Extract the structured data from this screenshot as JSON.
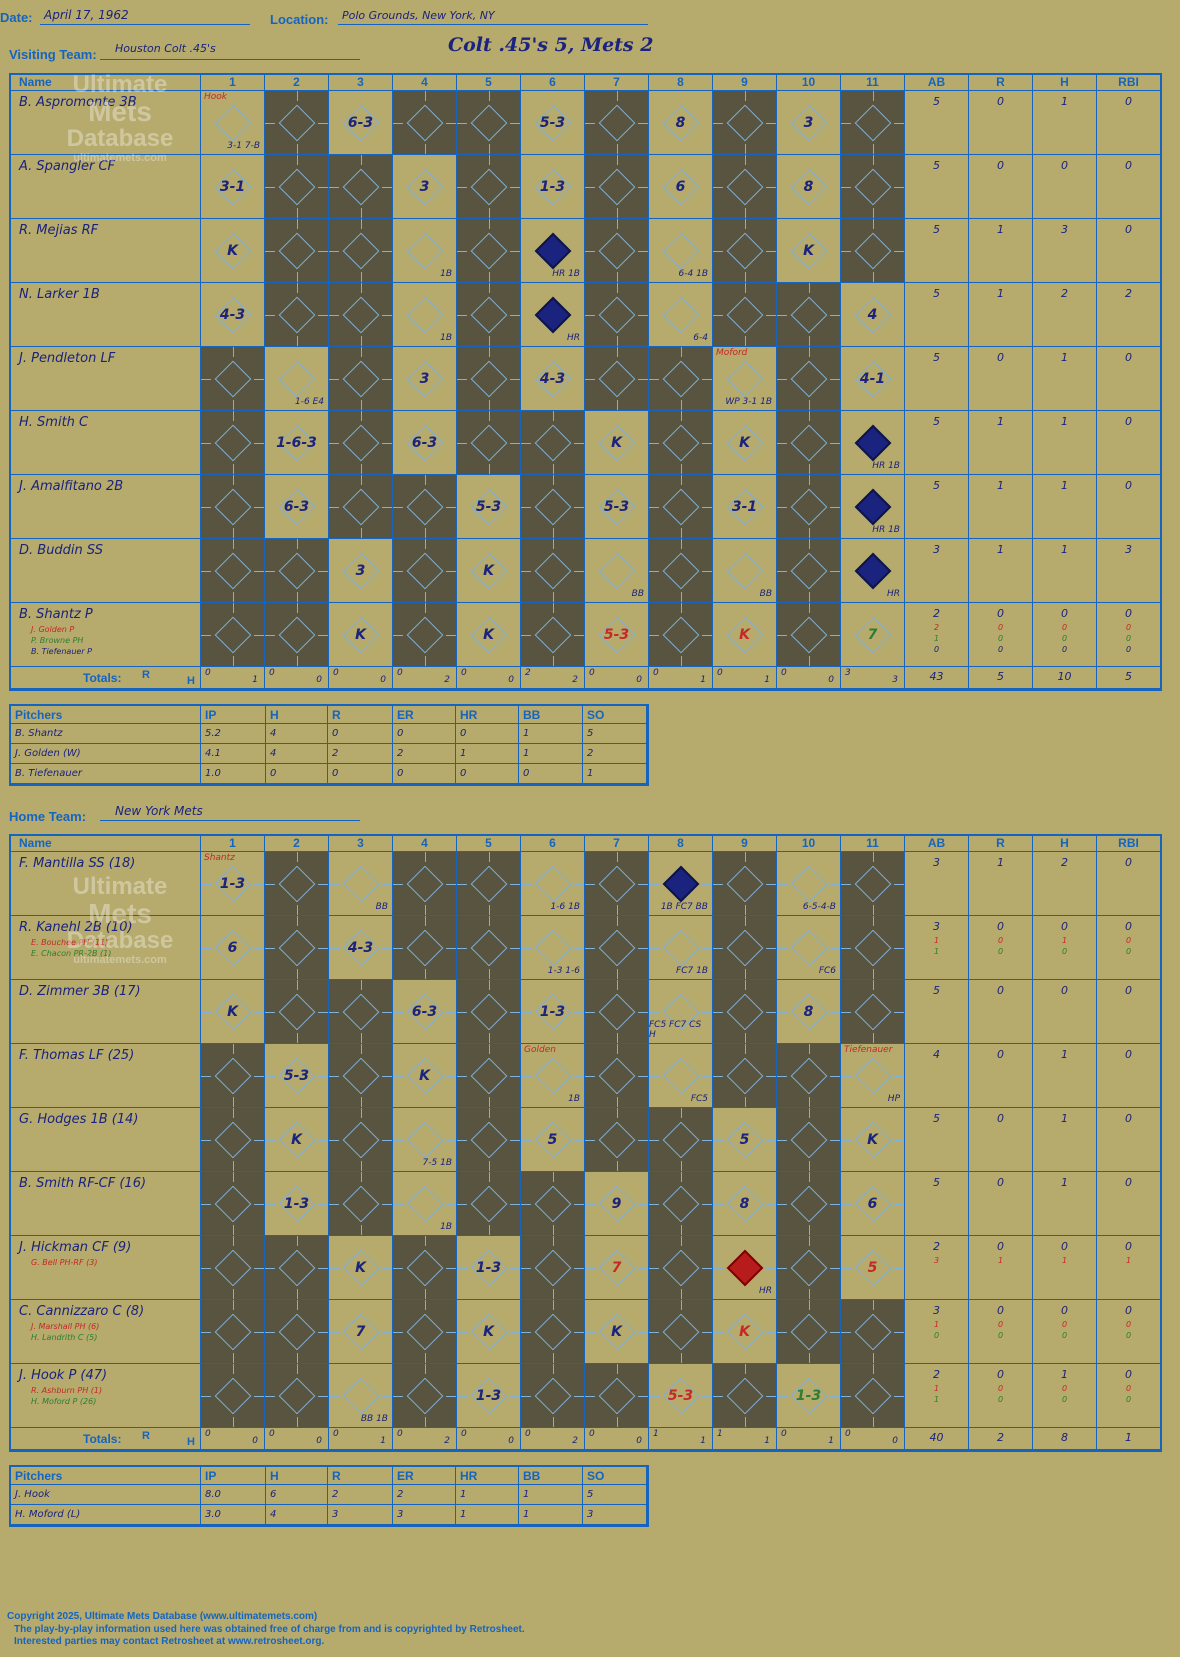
{
  "header": {
    "date_label": "Date:",
    "date": "April 17, 1962",
    "location_label": "Location:",
    "location": "Polo Grounds, New York, NY",
    "visiting_label": "Visiting Team:",
    "visiting_team": "Houston Colt .45's",
    "game_result": "Colt .45's 5, Mets 2",
    "home_label": "Home Team:",
    "home_team": "New York Mets"
  },
  "grid_headers": {
    "name": "Name",
    "innings": [
      "1",
      "2",
      "3",
      "4",
      "5",
      "6",
      "7",
      "8",
      "9",
      "10",
      "11"
    ],
    "stats": [
      "AB",
      "R",
      "H",
      "RBI"
    ],
    "totals": "Totals:",
    "r": "R",
    "h": "H"
  },
  "watermark": {
    "line1": "Ultimate",
    "line2": "Mets",
    "line3": "Database",
    "url": "ultimatemets.com"
  },
  "visitors": {
    "rows": [
      {
        "name": "B. Aspromonte 3B",
        "subs": [],
        "ab": "5",
        "r": "0",
        "h": "1",
        "rbi": "0",
        "cells": [
          {
            "p": "",
            "n": "Hook",
            "n2": "3-1 7-B",
            "run": false
          },
          {
            "dark": true
          },
          {
            "p": "6-3"
          },
          {
            "dark": true
          },
          {
            "dark": true
          },
          {
            "p": "5-3"
          },
          {
            "dark": true
          },
          {
            "p": "8"
          },
          {
            "dark": true
          },
          {
            "p": "3"
          },
          {
            "dark": true
          }
        ]
      },
      {
        "name": "A. Spangler CF",
        "subs": [],
        "ab": "5",
        "r": "0",
        "h": "0",
        "rbi": "0",
        "cells": [
          {
            "p": "3-1"
          },
          {
            "dark": true
          },
          {
            "dark": true
          },
          {
            "p": "3"
          },
          {
            "dark": true
          },
          {
            "p": "1-3"
          },
          {
            "dark": true
          },
          {
            "p": "6"
          },
          {
            "dark": true
          },
          {
            "p": "8"
          },
          {
            "dark": true
          }
        ]
      },
      {
        "name": "R. Mejias RF",
        "subs": [],
        "ab": "5",
        "r": "1",
        "h": "3",
        "rbi": "0",
        "cells": [
          {
            "p": "K"
          },
          {
            "dark": true
          },
          {
            "dark": true
          },
          {
            "p": "",
            "n2": "1B"
          },
          {
            "dark": true
          },
          {
            "run": true,
            "n2": "HR 1B"
          },
          {
            "dark": true
          },
          {
            "p": "",
            "n2": "6-4 1B"
          },
          {
            "dark": true
          },
          {
            "p": "K"
          },
          {
            "dark": true
          }
        ]
      },
      {
        "name": "N. Larker 1B",
        "subs": [],
        "ab": "5",
        "r": "1",
        "h": "2",
        "rbi": "2",
        "cells": [
          {
            "p": "4-3"
          },
          {
            "dark": true
          },
          {
            "dark": true
          },
          {
            "p": "",
            "n2": "1B"
          },
          {
            "dark": true
          },
          {
            "run": true,
            "n2": "HR"
          },
          {
            "dark": true
          },
          {
            "p": "",
            "n2": "6-4"
          },
          {
            "dark": true
          },
          {
            "dark": true
          },
          {
            "p": "4"
          }
        ]
      },
      {
        "name": "J. Pendleton LF",
        "subs": [],
        "ab": "5",
        "r": "0",
        "h": "1",
        "rbi": "0",
        "cells": [
          {
            "dark": true
          },
          {
            "p": "",
            "n2": "1-6 E4"
          },
          {
            "dark": true
          },
          {
            "p": "3"
          },
          {
            "dark": true
          },
          {
            "p": "4-3"
          },
          {
            "dark": true
          },
          {
            "dark": true
          },
          {
            "p": "",
            "n": "Moford",
            "n2": "WP 3-1 1B"
          },
          {
            "dark": true
          },
          {
            "p": "4-1"
          }
        ]
      },
      {
        "name": "H. Smith C",
        "subs": [],
        "ab": "5",
        "r": "1",
        "h": "1",
        "rbi": "0",
        "cells": [
          {
            "dark": true
          },
          {
            "p": "1-6-3"
          },
          {
            "dark": true
          },
          {
            "p": "6-3"
          },
          {
            "dark": true
          },
          {
            "dark": true
          },
          {
            "p": "K"
          },
          {
            "dark": true
          },
          {
            "p": "K"
          },
          {
            "dark": true
          },
          {
            "run": true,
            "n2": "HR 1B"
          }
        ]
      },
      {
        "name": "J. Amalfitano 2B",
        "subs": [],
        "ab": "5",
        "r": "1",
        "h": "1",
        "rbi": "0",
        "cells": [
          {
            "dark": true
          },
          {
            "p": "6-3"
          },
          {
            "dark": true
          },
          {
            "dark": true
          },
          {
            "p": "5-3"
          },
          {
            "dark": true
          },
          {
            "p": "5-3"
          },
          {
            "dark": true
          },
          {
            "p": "3-1"
          },
          {
            "dark": true
          },
          {
            "run": true,
            "n2": "HR 1B"
          }
        ]
      },
      {
        "name": "D. Buddin SS",
        "subs": [],
        "ab": "3",
        "r": "1",
        "h": "1",
        "rbi": "3",
        "cells": [
          {
            "dark": true
          },
          {
            "dark": true
          },
          {
            "p": "3"
          },
          {
            "dark": true
          },
          {
            "p": "K"
          },
          {
            "dark": true
          },
          {
            "p": "",
            "n2": "BB"
          },
          {
            "dark": true
          },
          {
            "p": "",
            "n2": "BB"
          },
          {
            "dark": true
          },
          {
            "run": true,
            "n2": "HR"
          }
        ]
      },
      {
        "name": "B. Shantz P",
        "subs": [
          {
            "t": "J. Golden P",
            "c": "#c62828"
          },
          {
            "t": "P. Browne PH",
            "c": "#2e7d32"
          },
          {
            "t": "B. Tiefenauer P",
            "c": "#1a237e"
          }
        ],
        "ab": "2",
        "r": "0",
        "h": "0",
        "rbi": "0",
        "subab": [
          "2",
          "1",
          "0"
        ],
        "subr": [
          "0",
          "0",
          "0"
        ],
        "subh": [
          "0",
          "0",
          "0"
        ],
        "subrbi": [
          "0",
          "0",
          "0"
        ],
        "cells": [
          {
            "dark": true
          },
          {
            "dark": true
          },
          {
            "p": "K"
          },
          {
            "dark": true
          },
          {
            "p": "K"
          },
          {
            "dark": true
          },
          {
            "p": "5-3",
            "c": "red"
          },
          {
            "dark": true
          },
          {
            "p": "K",
            "c": "red"
          },
          {
            "dark": true
          },
          {
            "p": "7",
            "c": "green"
          }
        ]
      }
    ],
    "totals": [
      [
        "0",
        "1"
      ],
      [
        "0",
        "0"
      ],
      [
        "0",
        "0"
      ],
      [
        "0",
        "2"
      ],
      [
        "0",
        "0"
      ],
      [
        "2",
        "2"
      ],
      [
        "0",
        "0"
      ],
      [
        "0",
        "1"
      ],
      [
        "0",
        "1"
      ],
      [
        "0",
        "0"
      ],
      [
        "3",
        "3"
      ]
    ],
    "totals_stats": [
      "43",
      "5",
      "10",
      "5"
    ]
  },
  "visitor_pitchers": {
    "headers": [
      "Pitchers",
      "IP",
      "H",
      "R",
      "ER",
      "HR",
      "BB",
      "SO"
    ],
    "rows": [
      [
        "B. Shantz",
        "5.2",
        "4",
        "0",
        "0",
        "0",
        "1",
        "5"
      ],
      [
        "J. Golden (W)",
        "4.1",
        "4",
        "2",
        "2",
        "1",
        "1",
        "2"
      ],
      [
        "B. Tiefenauer",
        "1.0",
        "0",
        "0",
        "0",
        "0",
        "0",
        "1"
      ]
    ]
  },
  "home": {
    "rows": [
      {
        "name": "F. Mantilla SS (18)",
        "subs": [],
        "ab": "3",
        "r": "1",
        "h": "2",
        "rbi": "0",
        "cells": [
          {
            "p": "1-3",
            "n": "Shantz"
          },
          {
            "dark": true
          },
          {
            "p": "",
            "n2": "BB"
          },
          {
            "dark": true
          },
          {
            "dark": true
          },
          {
            "p": "",
            "n2": "1-6 1B"
          },
          {
            "dark": true
          },
          {
            "run": true,
            "n2": "1B FC7 BB"
          },
          {
            "dark": true
          },
          {
            "p": "",
            "n2": "6-5-4-B"
          },
          {
            "dark": true
          }
        ]
      },
      {
        "name": "R. Kanehl 2B (10)",
        "subs": [
          {
            "t": "E. Bouchee PH (11)",
            "c": "#c62828"
          },
          {
            "t": "E. Chacon PR-2B (1)",
            "c": "#2e7d32"
          }
        ],
        "ab": "3",
        "r": "0",
        "h": "0",
        "rbi": "0",
        "subab": [
          "1",
          "1"
        ],
        "subr": [
          "0",
          "0"
        ],
        "subh": [
          "1",
          "0"
        ],
        "subrbi": [
          "0",
          "0"
        ],
        "cells": [
          {
            "p": "6"
          },
          {
            "dark": true
          },
          {
            "p": "4-3"
          },
          {
            "dark": true
          },
          {
            "dark": true
          },
          {
            "p": "",
            "n2": "1-3 1-6"
          },
          {
            "dark": true
          },
          {
            "p": "",
            "n2": "FC7 1B"
          },
          {
            "dark": true
          },
          {
            "p": "",
            "n2": "FC6"
          },
          {
            "dark": true
          }
        ]
      },
      {
        "name": "D. Zimmer 3B (17)",
        "subs": [],
        "ab": "5",
        "r": "0",
        "h": "0",
        "rbi": "0",
        "cells": [
          {
            "p": "K"
          },
          {
            "dark": true
          },
          {
            "dark": true
          },
          {
            "p": "6-3"
          },
          {
            "dark": true
          },
          {
            "p": "1-3"
          },
          {
            "dark": true
          },
          {
            "p": "",
            "n2": "FC5 FC7 CS H"
          },
          {
            "dark": true
          },
          {
            "p": "8"
          },
          {
            "dark": true
          }
        ]
      },
      {
        "name": "F. Thomas LF (25)",
        "subs": [],
        "ab": "4",
        "r": "0",
        "h": "1",
        "rbi": "0",
        "cells": [
          {
            "dark": true
          },
          {
            "p": "5-3"
          },
          {
            "dark": true
          },
          {
            "p": "K"
          },
          {
            "dark": true
          },
          {
            "p": "",
            "n": "Golden",
            "n2": "1B"
          },
          {
            "dark": true
          },
          {
            "p": "",
            "n2": "FC5"
          },
          {
            "dark": true
          },
          {
            "dark": true
          },
          {
            "p": "",
            "n": "Tiefenauer",
            "n2": "HP"
          }
        ]
      },
      {
        "name": "G. Hodges 1B (14)",
        "subs": [],
        "ab": "5",
        "r": "0",
        "h": "1",
        "rbi": "0",
        "cells": [
          {
            "dark": true
          },
          {
            "p": "K"
          },
          {
            "dark": true
          },
          {
            "p": "",
            "n2": "7-5 1B"
          },
          {
            "dark": true
          },
          {
            "p": "5"
          },
          {
            "dark": true
          },
          {
            "dark": true
          },
          {
            "p": "5"
          },
          {
            "dark": true
          },
          {
            "p": "K"
          }
        ]
      },
      {
        "name": "B. Smith RF-CF (16)",
        "subs": [],
        "ab": "5",
        "r": "0",
        "h": "1",
        "rbi": "0",
        "cells": [
          {
            "dark": true
          },
          {
            "p": "1-3"
          },
          {
            "dark": true
          },
          {
            "p": "",
            "n2": "1B"
          },
          {
            "dark": true
          },
          {
            "dark": true
          },
          {
            "p": "9"
          },
          {
            "dark": true
          },
          {
            "p": "8"
          },
          {
            "dark": true
          },
          {
            "p": "6"
          }
        ]
      },
      {
        "name": "J. Hickman CF (9)",
        "subs": [
          {
            "t": "G. Bell PH-RF (3)",
            "c": "#c62828"
          }
        ],
        "ab": "2",
        "r": "0",
        "h": "0",
        "rbi": "0",
        "subab": [
          "3"
        ],
        "subr": [
          "1"
        ],
        "subh": [
          "1"
        ],
        "subrbi": [
          "1"
        ],
        "cells": [
          {
            "dark": true
          },
          {
            "dark": true
          },
          {
            "p": "K"
          },
          {
            "dark": true
          },
          {
            "p": "1-3"
          },
          {
            "dark": true
          },
          {
            "p": "7",
            "c": "red"
          },
          {
            "dark": true
          },
          {
            "runred": true,
            "n2": "HR"
          },
          {
            "dark": true
          },
          {
            "p": "5",
            "c": "red"
          }
        ]
      },
      {
        "name": "C. Cannizzaro C (8)",
        "subs": [
          {
            "t": "J. Marshall PH (6)",
            "c": "#c62828"
          },
          {
            "t": "H. Landrith C (5)",
            "c": "#2e7d32"
          }
        ],
        "ab": "3",
        "r": "0",
        "h": "0",
        "rbi": "0",
        "subab": [
          "1",
          "0"
        ],
        "subr": [
          "0",
          "0"
        ],
        "subh": [
          "0",
          "0"
        ],
        "subrbi": [
          "0",
          "0"
        ],
        "cells": [
          {
            "dark": true
          },
          {
            "dark": true
          },
          {
            "p": "7"
          },
          {
            "dark": true
          },
          {
            "p": "K"
          },
          {
            "dark": true
          },
          {
            "p": "K"
          },
          {
            "dark": true
          },
          {
            "p": "K",
            "c": "red"
          },
          {
            "dark": true
          },
          {
            "dark": true
          }
        ]
      },
      {
        "name": "J. Hook P (47)",
        "subs": [
          {
            "t": "R. Ashburn PH (1)",
            "c": "#c62828"
          },
          {
            "t": "H. Moford P (26)",
            "c": "#2e7d32"
          }
        ],
        "ab": "2",
        "r": "0",
        "h": "1",
        "rbi": "0",
        "subab": [
          "1",
          "1"
        ],
        "subr": [
          "0",
          "0"
        ],
        "subh": [
          "0",
          "0"
        ],
        "subrbi": [
          "0",
          "0"
        ],
        "cells": [
          {
            "dark": true
          },
          {
            "dark": true
          },
          {
            "p": "",
            "n2": "BB 1B"
          },
          {
            "dark": true
          },
          {
            "p": "1-3"
          },
          {
            "dark": true
          },
          {
            "dark": true
          },
          {
            "p": "5-3",
            "c": "red"
          },
          {
            "dark": true
          },
          {
            "p": "1-3",
            "c": "green"
          },
          {
            "dark": true
          }
        ]
      }
    ],
    "totals": [
      [
        "0",
        "0"
      ],
      [
        "0",
        "0"
      ],
      [
        "0",
        "1"
      ],
      [
        "0",
        "2"
      ],
      [
        "0",
        "0"
      ],
      [
        "0",
        "2"
      ],
      [
        "0",
        "0"
      ],
      [
        "1",
        "1"
      ],
      [
        "1",
        "1"
      ],
      [
        "0",
        "1"
      ],
      [
        "0",
        "0"
      ]
    ],
    "totals_stats": [
      "40",
      "2",
      "8",
      "1"
    ]
  },
  "home_pitchers": {
    "headers": [
      "Pitchers",
      "IP",
      "H",
      "R",
      "ER",
      "HR",
      "BB",
      "SO"
    ],
    "rows": [
      [
        "J. Hook",
        "8.0",
        "6",
        "2",
        "2",
        "1",
        "1",
        "5"
      ],
      [
        "H. Moford (L)",
        "3.0",
        "4",
        "3",
        "3",
        "1",
        "1",
        "3"
      ]
    ]
  },
  "footer": {
    "line1": "Copyright 2025, Ultimate Mets Database (www.ultimatemets.com)",
    "line2": "The play-by-play information used here was obtained free of charge from and is copyrighted by Retrosheet.",
    "line3": "Interested parties may contact Retrosheet at www.retrosheet.org."
  }
}
